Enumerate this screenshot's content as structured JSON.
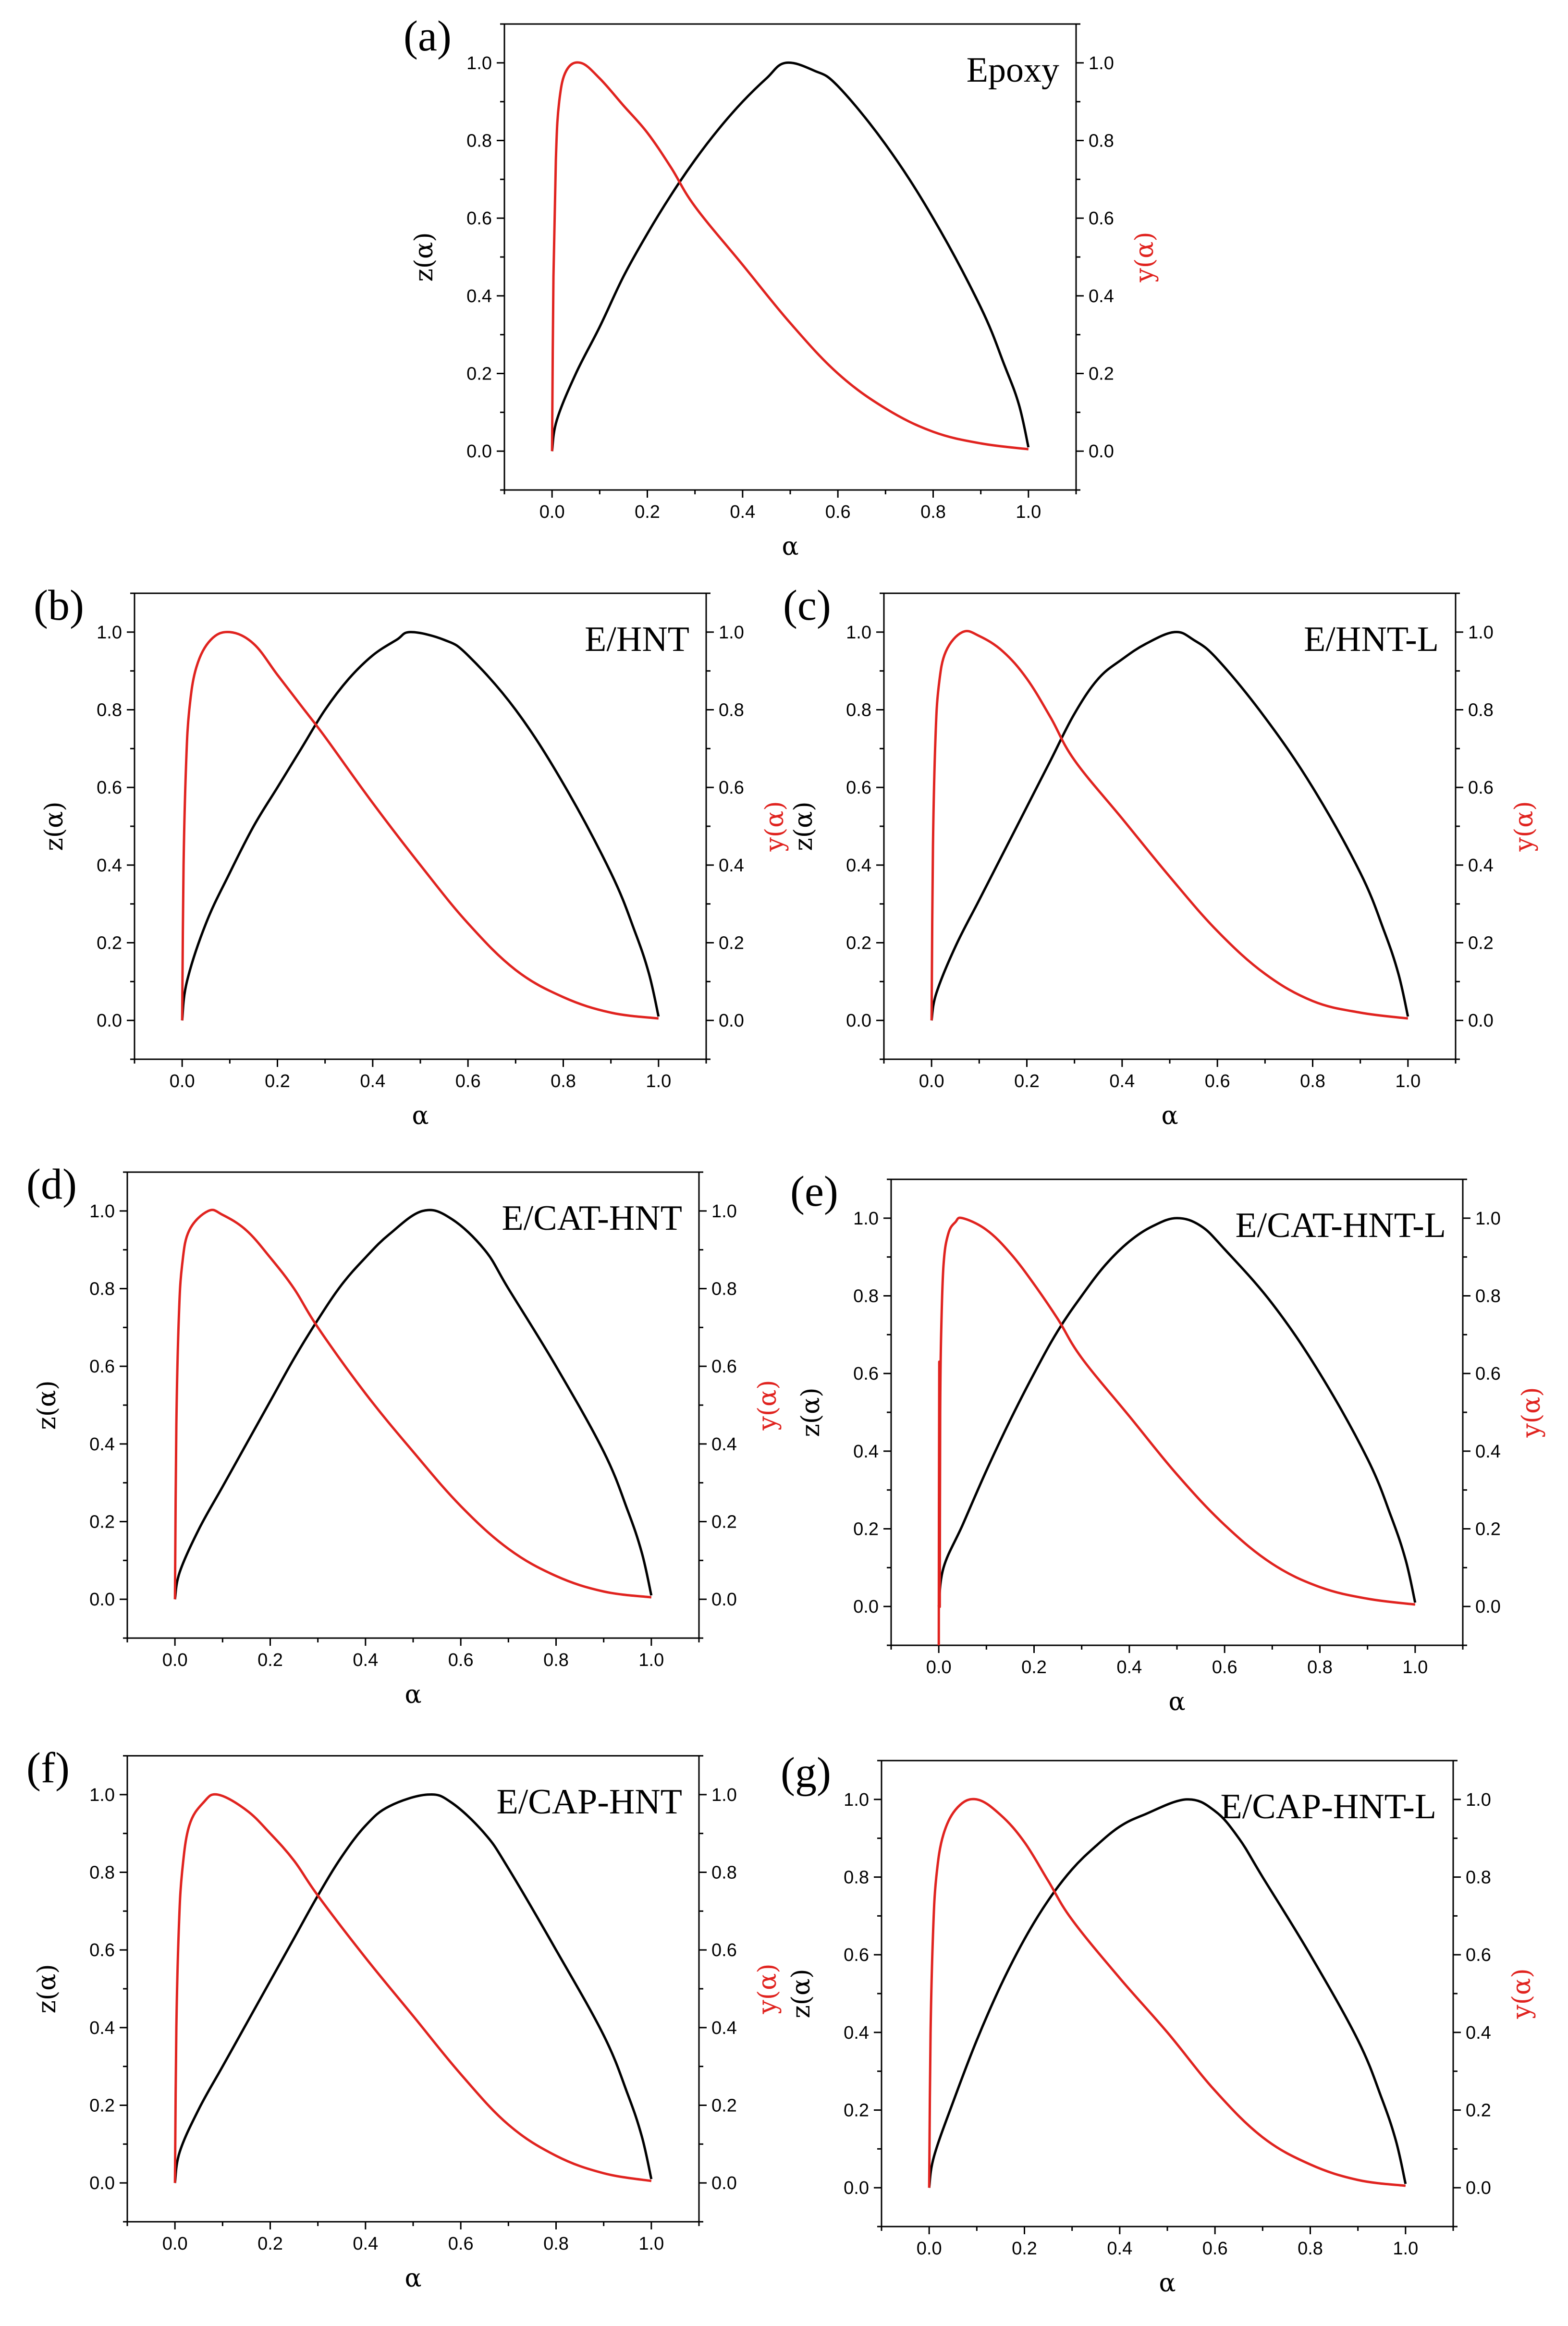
{
  "chart_data": [
    {
      "type": "line",
      "panel": "(a)",
      "title": "Epoxy",
      "xlabel": "α",
      "ylabel_left": "z(α)",
      "ylabel_right": "y(α)",
      "xlim": [
        -0.1,
        1.1
      ],
      "ylim": [
        -0.1,
        1.1
      ],
      "xticks": [
        "0.0",
        "0.2",
        "0.4",
        "0.6",
        "0.8",
        "1.0"
      ],
      "yticks": [
        "0.0",
        "0.2",
        "0.4",
        "0.6",
        "0.8",
        "1.0"
      ],
      "series": [
        {
          "name": "z(α)",
          "color": "#000000",
          "axis": "left",
          "x": [
            0.0,
            0.01,
            0.05,
            0.1,
            0.15,
            0.2,
            0.25,
            0.3,
            0.35,
            0.4,
            0.45,
            0.49,
            0.55,
            0.6,
            0.7,
            0.8,
            0.9,
            0.95,
            0.98,
            1.0
          ],
          "y": [
            0.0,
            0.08,
            0.2,
            0.32,
            0.45,
            0.56,
            0.66,
            0.75,
            0.83,
            0.9,
            0.96,
            1.0,
            0.98,
            0.94,
            0.79,
            0.6,
            0.37,
            0.22,
            0.12,
            0.01
          ]
        },
        {
          "name": "y(α)",
          "color": "#e0231f",
          "axis": "right",
          "x": [
            0.0,
            0.003,
            0.008,
            0.015,
            0.03,
            0.06,
            0.1,
            0.15,
            0.2,
            0.25,
            0.3,
            0.4,
            0.5,
            0.6,
            0.7,
            0.8,
            0.9,
            1.0
          ],
          "y": [
            0.0,
            0.45,
            0.75,
            0.9,
            0.98,
            1.0,
            0.96,
            0.89,
            0.82,
            0.73,
            0.63,
            0.48,
            0.33,
            0.2,
            0.11,
            0.05,
            0.02,
            0.005
          ]
        }
      ]
    },
    {
      "type": "line",
      "panel": "(b)",
      "title": "E/HNT",
      "xlabel": "α",
      "ylabel_left": "z(α)",
      "ylabel_right": "y(α)",
      "xlim": [
        -0.1,
        1.1
      ],
      "ylim": [
        -0.1,
        1.1
      ],
      "xticks": [
        "0.0",
        "0.2",
        "0.4",
        "0.6",
        "0.8",
        "1.0"
      ],
      "yticks": [
        "0.0",
        "0.2",
        "0.4",
        "0.6",
        "0.8",
        "1.0"
      ],
      "series": [
        {
          "name": "z(α)",
          "color": "#000000",
          "axis": "left",
          "x": [
            0.0,
            0.01,
            0.05,
            0.1,
            0.15,
            0.2,
            0.25,
            0.3,
            0.35,
            0.4,
            0.45,
            0.48,
            0.55,
            0.6,
            0.7,
            0.8,
            0.9,
            0.95,
            0.98,
            1.0
          ],
          "y": [
            0.0,
            0.1,
            0.25,
            0.38,
            0.5,
            0.6,
            0.7,
            0.8,
            0.88,
            0.94,
            0.98,
            1.0,
            0.98,
            0.94,
            0.8,
            0.61,
            0.38,
            0.23,
            0.12,
            0.01
          ]
        },
        {
          "name": "y(α)",
          "color": "#e0231f",
          "axis": "right",
          "x": [
            0.0,
            0.003,
            0.008,
            0.015,
            0.03,
            0.06,
            0.1,
            0.15,
            0.2,
            0.25,
            0.3,
            0.4,
            0.5,
            0.6,
            0.7,
            0.8,
            0.9,
            1.0
          ],
          "y": [
            0.0,
            0.4,
            0.65,
            0.8,
            0.91,
            0.98,
            1.0,
            0.97,
            0.89,
            0.81,
            0.73,
            0.56,
            0.4,
            0.25,
            0.13,
            0.06,
            0.02,
            0.005
          ]
        }
      ]
    },
    {
      "type": "line",
      "panel": "(c)",
      "title": "E/HNT-L",
      "xlabel": "α",
      "ylabel_left": "z(α)",
      "ylabel_right": "y(α)",
      "xlim": [
        -0.1,
        1.1
      ],
      "ylim": [
        -0.1,
        1.1
      ],
      "xticks": [
        "0.0",
        "0.2",
        "0.4",
        "0.6",
        "0.8",
        "1.0"
      ],
      "yticks": [
        "0.0",
        "0.2",
        "0.4",
        "0.6",
        "0.8",
        "1.0"
      ],
      "series": [
        {
          "name": "z(α)",
          "color": "#000000",
          "axis": "left",
          "x": [
            0.0,
            0.01,
            0.05,
            0.1,
            0.15,
            0.2,
            0.25,
            0.3,
            0.35,
            0.4,
            0.45,
            0.51,
            0.55,
            0.6,
            0.7,
            0.8,
            0.9,
            0.95,
            0.98,
            1.0
          ],
          "y": [
            0.0,
            0.07,
            0.19,
            0.31,
            0.43,
            0.55,
            0.67,
            0.79,
            0.88,
            0.93,
            0.97,
            1.0,
            0.98,
            0.93,
            0.78,
            0.6,
            0.38,
            0.23,
            0.12,
            0.01
          ]
        },
        {
          "name": "y(α)",
          "color": "#e0231f",
          "axis": "right",
          "x": [
            0.0,
            0.003,
            0.008,
            0.015,
            0.03,
            0.065,
            0.1,
            0.15,
            0.2,
            0.25,
            0.3,
            0.4,
            0.5,
            0.6,
            0.7,
            0.8,
            0.9,
            1.0
          ],
          "y": [
            0.0,
            0.45,
            0.72,
            0.86,
            0.95,
            1.0,
            0.99,
            0.95,
            0.88,
            0.78,
            0.67,
            0.52,
            0.37,
            0.23,
            0.12,
            0.05,
            0.02,
            0.005
          ]
        }
      ]
    },
    {
      "type": "line",
      "panel": "(d)",
      "title": "E/CAT-HNT",
      "xlabel": "α",
      "ylabel_left": "z(α)",
      "ylabel_right": "y(α)",
      "xlim": [
        -0.1,
        1.1
      ],
      "ylim": [
        -0.1,
        1.1
      ],
      "xticks": [
        "0.0",
        "0.2",
        "0.4",
        "0.6",
        "0.8",
        "1.0"
      ],
      "yticks": [
        "0.0",
        "0.2",
        "0.4",
        "0.6",
        "0.8",
        "1.0"
      ],
      "series": [
        {
          "name": "z(α)",
          "color": "#000000",
          "axis": "left",
          "x": [
            0.0,
            0.01,
            0.05,
            0.1,
            0.15,
            0.2,
            0.25,
            0.3,
            0.35,
            0.4,
            0.45,
            0.52,
            0.58,
            0.65,
            0.7,
            0.8,
            0.9,
            0.95,
            0.98,
            1.0
          ],
          "y": [
            0.0,
            0.07,
            0.18,
            0.29,
            0.4,
            0.51,
            0.62,
            0.72,
            0.81,
            0.88,
            0.94,
            1.0,
            0.98,
            0.9,
            0.8,
            0.6,
            0.38,
            0.23,
            0.12,
            0.01
          ]
        },
        {
          "name": "y(α)",
          "color": "#e0231f",
          "axis": "right",
          "x": [
            0.0,
            0.003,
            0.008,
            0.015,
            0.03,
            0.07,
            0.1,
            0.15,
            0.2,
            0.25,
            0.3,
            0.4,
            0.5,
            0.6,
            0.7,
            0.8,
            0.9,
            1.0
          ],
          "y": [
            0.0,
            0.45,
            0.72,
            0.86,
            0.95,
            1.0,
            0.99,
            0.95,
            0.88,
            0.8,
            0.7,
            0.53,
            0.38,
            0.24,
            0.13,
            0.06,
            0.02,
            0.005
          ]
        }
      ]
    },
    {
      "type": "line",
      "panel": "(e)",
      "title": "E/CAT-HNT-L",
      "xlabel": "α",
      "ylabel_left": "z(α)",
      "ylabel_right": "y(α)",
      "xlim": [
        -0.1,
        1.1
      ],
      "ylim": [
        -0.1,
        1.1
      ],
      "xticks": [
        "0.0",
        "0.2",
        "0.4",
        "0.6",
        "0.8",
        "1.0"
      ],
      "yticks": [
        "0.0",
        "0.2",
        "0.4",
        "0.6",
        "0.8",
        "1.0"
      ],
      "series": [
        {
          "name": "z(α)",
          "color": "#000000",
          "axis": "left",
          "x": [
            0.0,
            0.01,
            0.05,
            0.1,
            0.15,
            0.2,
            0.25,
            0.3,
            0.35,
            0.4,
            0.45,
            0.5,
            0.55,
            0.6,
            0.7,
            0.8,
            0.9,
            0.95,
            0.98,
            1.0
          ],
          "y": [
            0.0,
            0.1,
            0.21,
            0.35,
            0.48,
            0.6,
            0.71,
            0.8,
            0.88,
            0.94,
            0.98,
            1.0,
            0.98,
            0.92,
            0.78,
            0.6,
            0.38,
            0.23,
            0.12,
            0.01
          ]
        },
        {
          "name": "y(α)",
          "color": "#e0231f",
          "axis": "right",
          "x": [
            0.0,
            0.001,
            0.002,
            0.003,
            0.005,
            0.01,
            0.02,
            0.035,
            0.05,
            0.1,
            0.15,
            0.2,
            0.25,
            0.3,
            0.4,
            0.5,
            0.6,
            0.7,
            0.8,
            0.9,
            1.0
          ],
          "y": [
            -0.1,
            0.63,
            0.0,
            0.5,
            0.7,
            0.88,
            0.96,
            0.99,
            1.0,
            0.97,
            0.91,
            0.83,
            0.74,
            0.64,
            0.49,
            0.34,
            0.21,
            0.11,
            0.05,
            0.02,
            0.005
          ]
        }
      ]
    },
    {
      "type": "line",
      "panel": "(f)",
      "title": "E/CAP-HNT",
      "xlabel": "α",
      "ylabel_left": "z(α)",
      "ylabel_right": "y(α)",
      "xlim": [
        -0.1,
        1.1
      ],
      "ylim": [
        -0.1,
        1.1
      ],
      "xticks": [
        "0.0",
        "0.2",
        "0.4",
        "0.6",
        "0.8",
        "1.0"
      ],
      "yticks": [
        "0.0",
        "0.2",
        "0.4",
        "0.6",
        "0.8",
        "1.0"
      ],
      "series": [
        {
          "name": "z(α)",
          "color": "#000000",
          "axis": "left",
          "x": [
            0.0,
            0.01,
            0.05,
            0.1,
            0.15,
            0.2,
            0.25,
            0.3,
            0.35,
            0.4,
            0.45,
            0.53,
            0.58,
            0.65,
            0.7,
            0.8,
            0.9,
            0.95,
            0.98,
            1.0
          ],
          "y": [
            0.0,
            0.08,
            0.19,
            0.3,
            0.41,
            0.52,
            0.63,
            0.74,
            0.84,
            0.92,
            0.97,
            1.0,
            0.98,
            0.9,
            0.81,
            0.6,
            0.38,
            0.23,
            0.12,
            0.01
          ]
        },
        {
          "name": "y(α)",
          "color": "#e0231f",
          "axis": "right",
          "x": [
            0.0,
            0.003,
            0.008,
            0.015,
            0.03,
            0.06,
            0.09,
            0.15,
            0.2,
            0.25,
            0.3,
            0.4,
            0.5,
            0.6,
            0.7,
            0.8,
            0.9,
            1.0
          ],
          "y": [
            0.0,
            0.4,
            0.65,
            0.8,
            0.92,
            0.98,
            1.0,
            0.96,
            0.9,
            0.83,
            0.74,
            0.58,
            0.43,
            0.28,
            0.15,
            0.07,
            0.025,
            0.005
          ]
        }
      ]
    },
    {
      "type": "line",
      "panel": "(g)",
      "title": "E/CAP-HNT-L",
      "xlabel": "α",
      "ylabel_left": "z(α)",
      "ylabel_right": "y(α)",
      "xlim": [
        -0.1,
        1.1
      ],
      "ylim": [
        -0.1,
        1.1
      ],
      "xticks": [
        "0.0",
        "0.2",
        "0.4",
        "0.6",
        "0.8",
        "1.0"
      ],
      "yticks": [
        "0.0",
        "0.2",
        "0.4",
        "0.6",
        "0.8",
        "1.0"
      ],
      "series": [
        {
          "name": "z(α)",
          "color": "#000000",
          "axis": "left",
          "x": [
            0.0,
            0.01,
            0.05,
            0.1,
            0.15,
            0.2,
            0.25,
            0.3,
            0.35,
            0.4,
            0.45,
            0.54,
            0.6,
            0.65,
            0.7,
            0.8,
            0.9,
            0.95,
            0.98,
            1.0
          ],
          "y": [
            0.0,
            0.08,
            0.22,
            0.38,
            0.52,
            0.64,
            0.74,
            0.82,
            0.88,
            0.93,
            0.96,
            1.0,
            0.97,
            0.9,
            0.8,
            0.6,
            0.38,
            0.23,
            0.12,
            0.01
          ]
        },
        {
          "name": "y(α)",
          "color": "#e0231f",
          "axis": "right",
          "x": [
            0.0,
            0.003,
            0.008,
            0.015,
            0.03,
            0.06,
            0.1,
            0.15,
            0.2,
            0.25,
            0.3,
            0.4,
            0.5,
            0.6,
            0.7,
            0.8,
            0.9,
            1.0
          ],
          "y": [
            0.0,
            0.4,
            0.65,
            0.8,
            0.91,
            0.98,
            1.0,
            0.96,
            0.89,
            0.79,
            0.69,
            0.54,
            0.4,
            0.25,
            0.13,
            0.06,
            0.02,
            0.005
          ]
        }
      ]
    }
  ]
}
